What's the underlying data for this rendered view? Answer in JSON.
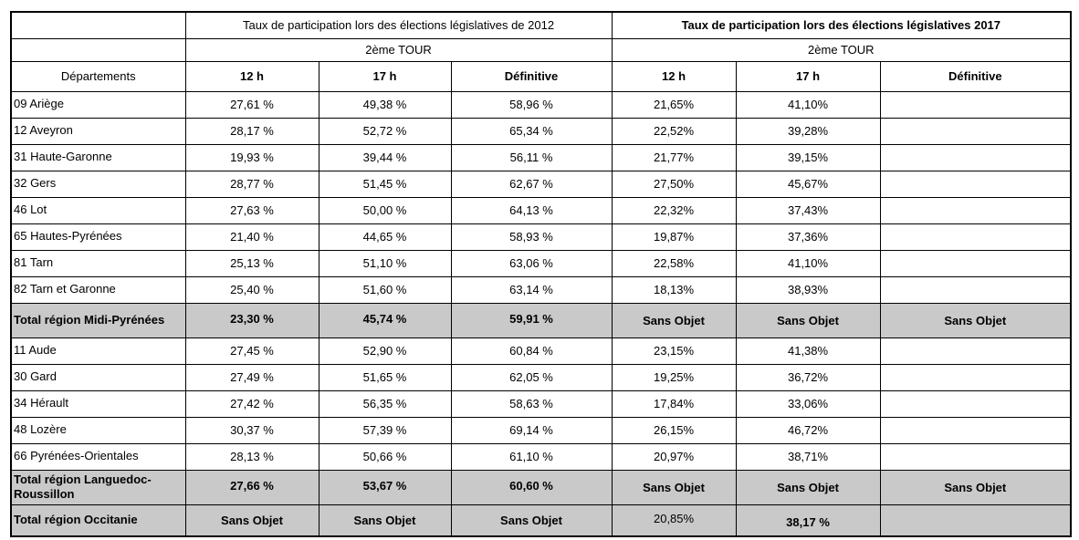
{
  "table": {
    "header": {
      "col_group_2012": "Taux de participation lors des élections législatives de 2012",
      "col_group_2017": "Taux de participation lors des élections législatives 2017",
      "round_2012": "2ème TOUR",
      "round_2017": "2ème TOUR",
      "departements_label": "Départements",
      "subcols_2012": [
        "12 h",
        "17 h",
        "Définitive"
      ],
      "subcols_2017": [
        "12 h",
        "17 h",
        "Définitive"
      ]
    },
    "colors": {
      "total_row_bg": "#c9c9c9",
      "border": "#000000"
    },
    "rows": [
      {
        "type": "department",
        "label": "09 Ariège",
        "values": [
          "27,61 %",
          "49,38 %",
          "58,96 %",
          "21,65%",
          "41,10%",
          ""
        ]
      },
      {
        "type": "department",
        "label": "12 Aveyron",
        "values": [
          "28,17 %",
          "52,72 %",
          "65,34 %",
          "22,52%",
          "39,28%",
          ""
        ]
      },
      {
        "type": "department",
        "label": "31 Haute-Garonne",
        "values": [
          "19,93 %",
          "39,44 %",
          "56,11 %",
          "21,77%",
          "39,15%",
          ""
        ]
      },
      {
        "type": "department",
        "label": "32 Gers",
        "values": [
          "28,77 %",
          "51,45 %",
          "62,67 %",
          "27,50%",
          "45,67%",
          ""
        ]
      },
      {
        "type": "department",
        "label": "46 Lot",
        "values": [
          "27,63 %",
          "50,00 %",
          "64,13 %",
          "22,32%",
          "37,43%",
          ""
        ]
      },
      {
        "type": "department",
        "label": "65 Hautes-Pyrénées",
        "values": [
          "21,40 %",
          "44,65 %",
          "58,93 %",
          "19,87%",
          "37,36%",
          ""
        ]
      },
      {
        "type": "department",
        "label": "81 Tarn",
        "values": [
          "25,13 %",
          "51,10 %",
          "63,06 %",
          "22,58%",
          "41,10%",
          ""
        ]
      },
      {
        "type": "department",
        "label": "82 Tarn et Garonne",
        "values": [
          "25,40 %",
          "51,60 %",
          "63,14 %",
          "18,13%",
          "38,93%",
          ""
        ]
      },
      {
        "type": "total",
        "label": "Total région Midi-Pyrénées",
        "values": [
          "23,30 %",
          "45,74 %",
          "59,91 %",
          "Sans Objet",
          "Sans Objet",
          "Sans Objet"
        ]
      },
      {
        "type": "department",
        "label": "11 Aude",
        "values": [
          "27,45 %",
          "52,90 %",
          "60,84 %",
          "23,15%",
          "41,38%",
          ""
        ]
      },
      {
        "type": "department",
        "label": "30 Gard",
        "values": [
          "27,49 %",
          "51,65 %",
          "62,05 %",
          "19,25%",
          "36,72%",
          ""
        ]
      },
      {
        "type": "department",
        "label": "34 Hérault",
        "values": [
          "27,42 %",
          "56,35 %",
          "58,63 %",
          "17,84%",
          "33,06%",
          ""
        ]
      },
      {
        "type": "department",
        "label": "48 Lozère",
        "values": [
          "30,37 %",
          "57,39 %",
          "69,14 %",
          "26,15%",
          "46,72%",
          ""
        ]
      },
      {
        "type": "department",
        "label": "66 Pyrénées-Orientales",
        "values": [
          "28,13 %",
          "50,66 %",
          "61,10 %",
          "20,97%",
          "38,71%",
          ""
        ]
      },
      {
        "type": "total",
        "label": "Total région Languedoc-Roussillon",
        "values": [
          "27,66 %",
          "53,67 %",
          "60,60 %",
          "Sans Objet",
          "Sans Objet",
          "Sans Objet"
        ]
      },
      {
        "type": "total-mixed",
        "label": "Total région Occitanie",
        "values": [
          "Sans Objet",
          "Sans Objet",
          "Sans Objet",
          "20,85%",
          "38,17 %",
          ""
        ]
      }
    ]
  }
}
